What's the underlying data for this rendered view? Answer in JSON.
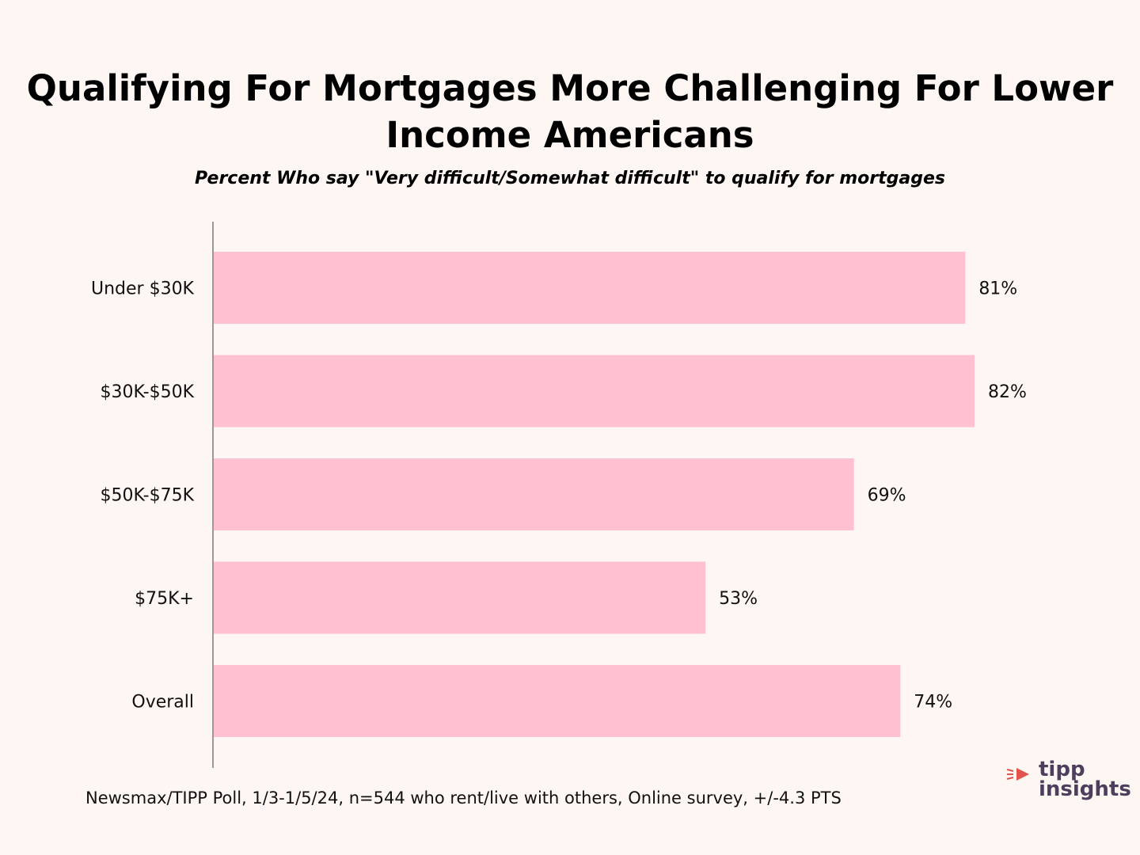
{
  "title": "Qualifying For Mortgages More Challenging For Lower Income Americans",
  "subtitle": "Percent Who say \"Very difficult/Somewhat difficult\" to qualify for mortgages",
  "source": "Newsmax/TIPP Poll, 1/3-1/5/24, n=544 who rent/live with others, Online survey, +/-4.3 PTS",
  "logo": {
    "line1": "tipp",
    "line2": "insights"
  },
  "colors": {
    "bar": "#ffc0d0",
    "axis": "#999999",
    "background": "#fdf6f2",
    "logo_accent": "#e2534b",
    "logo_text": "#4a3f5c"
  },
  "chart_data": {
    "type": "bar",
    "orientation": "horizontal",
    "categories": [
      "Under $30K",
      "$30K-$50K",
      "$50K-$75K",
      "$75K+",
      "Overall"
    ],
    "values": [
      81,
      82,
      69,
      53,
      74
    ],
    "value_labels": [
      "81%",
      "82%",
      "69%",
      "53%",
      "74%"
    ],
    "unit": "%",
    "xlim": [
      0,
      100
    ],
    "grid": false,
    "legend": "none"
  }
}
